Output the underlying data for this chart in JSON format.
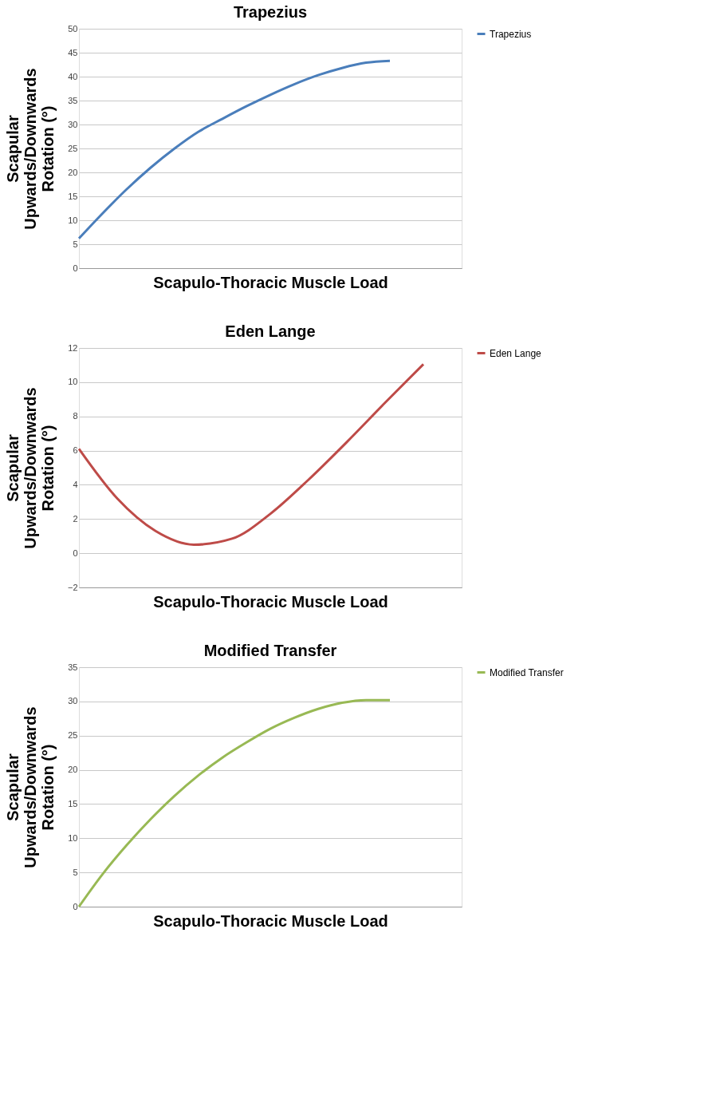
{
  "chart_data": [
    {
      "type": "line",
      "title": "Trapezius",
      "xlabel": "Scapulo-Thoracic Muscle Load",
      "ylabel": "Scapular Upwards/Downwards Rotation (°)",
      "categories": [
        null,
        null,
        null,
        null,
        null,
        null,
        null,
        null,
        null,
        null,
        null,
        null,
        null,
        null,
        null,
        null,
        null
      ],
      "series": [
        {
          "name": "Trapezius",
          "color": "#4a7ebb",
          "values": [
            6.2,
            11.5,
            16.5,
            21,
            25,
            28.5,
            31.2,
            33.8,
            36.2,
            38.4,
            40.3,
            41.8,
            42.9,
            43.3,
            null,
            null,
            null
          ]
        }
      ],
      "ylim": [
        0,
        50
      ],
      "yticks": [
        0,
        5,
        10,
        15,
        20,
        25,
        30,
        35,
        40,
        45,
        50
      ],
      "grid": "y",
      "legend": "right",
      "marker": "none",
      "line_style": "solid"
    },
    {
      "type": "line",
      "title": "Eden Lange",
      "xlabel": "Scapulo-Thoracic Muscle Load",
      "ylabel": "Scapular Upwards/Downwards Rotation (°)",
      "categories": [
        null,
        null,
        null,
        null,
        null,
        null,
        null,
        null,
        null,
        null,
        null
      ],
      "series": [
        {
          "name": "Eden Lange",
          "color": "#be4b48",
          "values": [
            6.1,
            3.2,
            1.3,
            0.5,
            0.85,
            2.3,
            4.3,
            6.5,
            8.8,
            11.05,
            null
          ]
        }
      ],
      "ylim": [
        -2,
        12
      ],
      "yticks": [
        -2,
        0,
        2,
        4,
        6,
        8,
        10,
        12
      ],
      "grid": "y",
      "legend": "right",
      "marker": "none",
      "line_style": "solid"
    },
    {
      "type": "line",
      "title": "Modified Transfer",
      "xlabel": "Scapulo-Thoracic Muscle Load",
      "ylabel": "Scapular Upwards/Downwards Rotation (°)",
      "categories": [
        null,
        null,
        null,
        null,
        null,
        null,
        null,
        null,
        null,
        null,
        null,
        null,
        null,
        null,
        null,
        null,
        null
      ],
      "series": [
        {
          "name": "Modified Transfer",
          "color": "#98b954",
          "values": [
            0,
            4.8,
            9,
            12.8,
            16.2,
            19.2,
            21.8,
            24,
            26,
            27.6,
            28.9,
            29.8,
            30.2,
            30.2,
            null,
            null,
            null
          ]
        }
      ],
      "ylim": [
        0,
        35
      ],
      "yticks": [
        0,
        5,
        10,
        15,
        20,
        25,
        30,
        35
      ],
      "grid": "y",
      "legend": "right",
      "marker": "none",
      "line_style": "solid"
    }
  ]
}
